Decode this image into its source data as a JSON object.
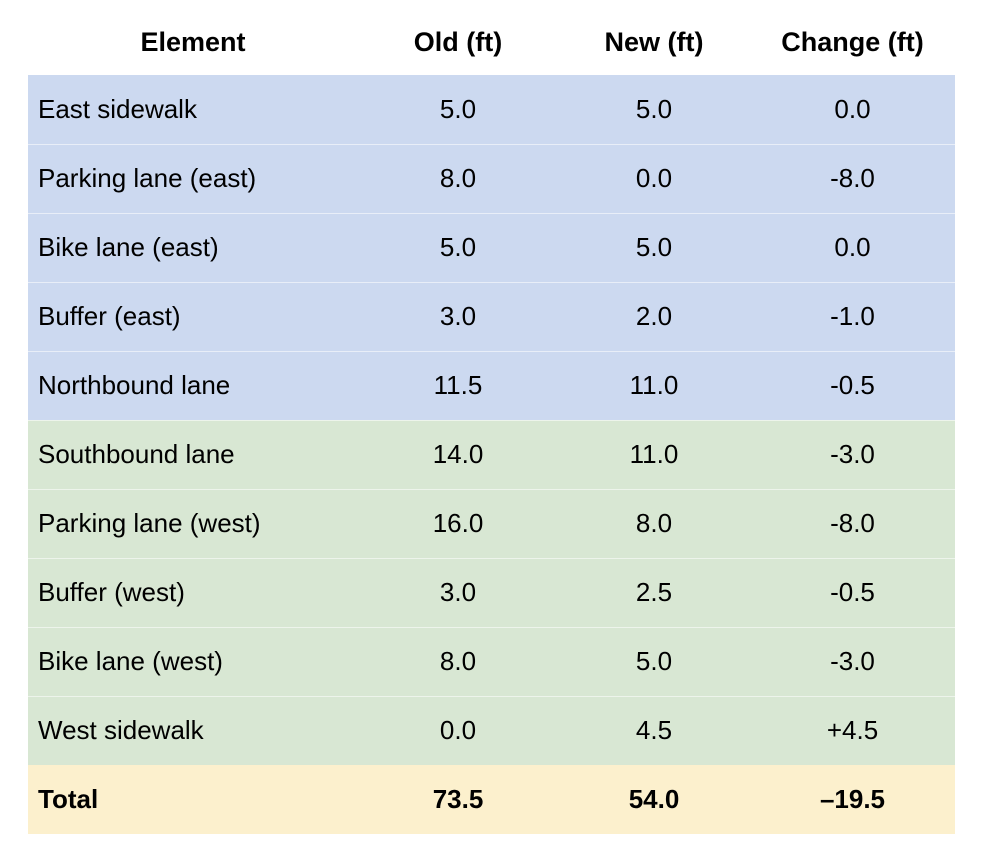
{
  "chart_data": {
    "type": "table",
    "title": "",
    "columns": [
      "Element",
      "Old (ft)",
      "New (ft)",
      "Change (ft)"
    ],
    "rows": [
      {
        "element": "East sidewalk",
        "old": "5.0",
        "new": "5.0",
        "change": "0.0",
        "group": "east"
      },
      {
        "element": "Parking lane (east)",
        "old": "8.0",
        "new": "0.0",
        "change": "-8.0",
        "group": "east"
      },
      {
        "element": "Bike lane (east)",
        "old": "5.0",
        "new": "5.0",
        "change": "0.0",
        "group": "east"
      },
      {
        "element": "Buffer (east)",
        "old": "3.0",
        "new": "2.0",
        "change": "-1.0",
        "group": "east"
      },
      {
        "element": "Northbound lane",
        "old": "11.5",
        "new": "11.0",
        "change": "-0.5",
        "group": "east"
      },
      {
        "element": "Southbound lane",
        "old": "14.0",
        "new": "11.0",
        "change": "-3.0",
        "group": "west"
      },
      {
        "element": "Parking lane (west)",
        "old": "16.0",
        "new": "8.0",
        "change": "-8.0",
        "group": "west"
      },
      {
        "element": "Buffer (west)",
        "old": "3.0",
        "new": "2.5",
        "change": "-0.5",
        "group": "west"
      },
      {
        "element": "Bike lane (west)",
        "old": "8.0",
        "new": "5.0",
        "change": "-3.0",
        "group": "west"
      },
      {
        "element": "West sidewalk",
        "old": "0.0",
        "new": "4.5",
        "change": "+4.5",
        "group": "west"
      }
    ],
    "total_row": {
      "element": "Total",
      "old": "73.5",
      "new": "54.0",
      "change": "–19.5"
    },
    "colors": {
      "east_section_bg": "#ccd9f0",
      "west_section_bg": "#d8e7d3",
      "total_row_bg": "#fcf0cd",
      "header_bg": "#ffffff",
      "text": "#000000",
      "row_separator": "rgba(255,255,255,0.55)"
    },
    "layout": {
      "grid": "faint white separators between body rows",
      "legend": "none",
      "row_groups": [
        "east (blue)",
        "west (green)",
        "total (cream)"
      ]
    }
  }
}
